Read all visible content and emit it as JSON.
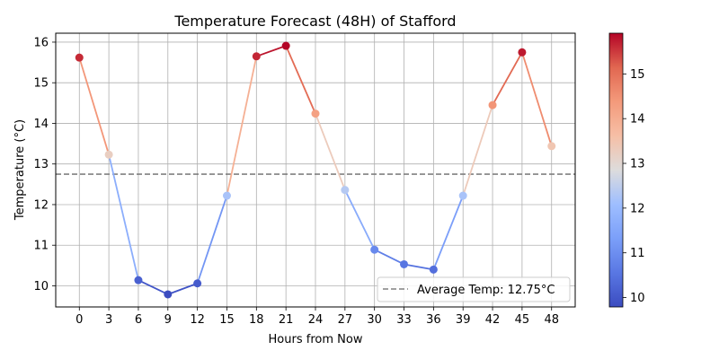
{
  "chart_data": {
    "type": "line",
    "title": "Temperature Forecast (48H) of Stafford",
    "xlabel": "Hours from Now",
    "ylabel": "Temperature (°C)",
    "x": [
      0,
      3,
      6,
      9,
      12,
      15,
      18,
      21,
      24,
      27,
      30,
      33,
      36,
      39,
      42,
      45,
      48
    ],
    "series": [
      {
        "values": [
          15.62,
          13.23,
          10.14,
          9.79,
          10.06,
          12.22,
          15.65,
          15.91,
          14.24,
          12.36,
          10.89,
          10.53,
          10.4,
          12.22,
          14.45,
          15.75,
          13.44
        ]
      }
    ],
    "xticks": [
      "0",
      "3",
      "6",
      "9",
      "12",
      "15",
      "18",
      "21",
      "24",
      "27",
      "30",
      "33",
      "36",
      "39",
      "42",
      "45",
      "48"
    ],
    "yticks": [
      "10",
      "11",
      "12",
      "13",
      "14",
      "15",
      "16"
    ],
    "xlim": [
      -2.4,
      50.4
    ],
    "ylim": [
      9.48,
      16.22
    ],
    "grid": true,
    "average_line": {
      "value": 12.75,
      "label": "Average Temp: 12.75°C",
      "color": "#808080"
    },
    "legend": {
      "location": "lower-right",
      "entries": [
        "Average Temp: 12.75°C"
      ]
    },
    "colorbar": {
      "colormap": "coolwarm",
      "range": [
        9.79,
        15.91
      ],
      "ticks": [
        "10",
        "11",
        "12",
        "13",
        "14",
        "15"
      ]
    }
  }
}
